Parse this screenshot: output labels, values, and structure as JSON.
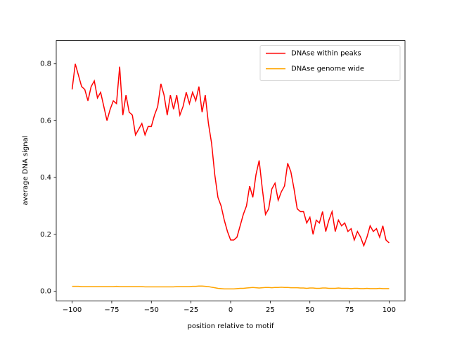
{
  "chart_data": {
    "type": "line",
    "xlabel": "position relative to motif",
    "ylabel": "average DNA signal",
    "x": [
      -100,
      -98,
      -96,
      -94,
      -92,
      -90,
      -88,
      -86,
      -84,
      -82,
      -80,
      -78,
      -76,
      -74,
      -72,
      -70,
      -68,
      -66,
      -64,
      -62,
      -60,
      -58,
      -56,
      -54,
      -52,
      -50,
      -48,
      -46,
      -44,
      -42,
      -40,
      -38,
      -36,
      -34,
      -32,
      -30,
      -28,
      -26,
      -24,
      -22,
      -20,
      -18,
      -16,
      -14,
      -12,
      -10,
      -8,
      -6,
      -4,
      -2,
      0,
      2,
      4,
      6,
      8,
      10,
      12,
      14,
      16,
      18,
      20,
      22,
      24,
      26,
      28,
      30,
      32,
      34,
      36,
      38,
      40,
      42,
      44,
      46,
      48,
      50,
      52,
      54,
      56,
      58,
      60,
      62,
      64,
      66,
      68,
      70,
      72,
      74,
      76,
      78,
      80,
      82,
      84,
      86,
      88,
      90,
      92,
      94,
      96,
      98,
      100
    ],
    "series": [
      {
        "name": "DNAse within peaks",
        "color": "#ff0000",
        "values": [
          0.71,
          0.8,
          0.76,
          0.72,
          0.71,
          0.67,
          0.72,
          0.74,
          0.68,
          0.7,
          0.65,
          0.6,
          0.64,
          0.67,
          0.66,
          0.79,
          0.62,
          0.69,
          0.63,
          0.62,
          0.55,
          0.57,
          0.59,
          0.55,
          0.58,
          0.58,
          0.62,
          0.65,
          0.73,
          0.69,
          0.62,
          0.69,
          0.64,
          0.69,
          0.62,
          0.65,
          0.7,
          0.66,
          0.7,
          0.67,
          0.72,
          0.63,
          0.69,
          0.59,
          0.52,
          0.41,
          0.33,
          0.3,
          0.25,
          0.21,
          0.18,
          0.18,
          0.19,
          0.23,
          0.27,
          0.3,
          0.37,
          0.33,
          0.41,
          0.46,
          0.36,
          0.27,
          0.29,
          0.36,
          0.38,
          0.32,
          0.35,
          0.37,
          0.45,
          0.42,
          0.36,
          0.29,
          0.28,
          0.28,
          0.24,
          0.26,
          0.2,
          0.25,
          0.24,
          0.28,
          0.21,
          0.25,
          0.28,
          0.21,
          0.25,
          0.23,
          0.24,
          0.21,
          0.22,
          0.18,
          0.21,
          0.19,
          0.16,
          0.19,
          0.23,
          0.21,
          0.22,
          0.19,
          0.23,
          0.18,
          0.17
        ]
      },
      {
        "name": "DNAse genome wide",
        "color": "#ffa500",
        "values": [
          0.017,
          0.017,
          0.017,
          0.016,
          0.016,
          0.016,
          0.016,
          0.016,
          0.016,
          0.016,
          0.016,
          0.016,
          0.016,
          0.016,
          0.017,
          0.016,
          0.016,
          0.016,
          0.016,
          0.016,
          0.016,
          0.016,
          0.016,
          0.015,
          0.015,
          0.015,
          0.015,
          0.015,
          0.015,
          0.015,
          0.015,
          0.015,
          0.015,
          0.016,
          0.016,
          0.016,
          0.016,
          0.016,
          0.017,
          0.017,
          0.018,
          0.018,
          0.017,
          0.016,
          0.014,
          0.012,
          0.01,
          0.009,
          0.008,
          0.008,
          0.008,
          0.008,
          0.009,
          0.01,
          0.01,
          0.011,
          0.012,
          0.013,
          0.012,
          0.011,
          0.012,
          0.013,
          0.013,
          0.012,
          0.013,
          0.013,
          0.014,
          0.013,
          0.013,
          0.012,
          0.012,
          0.012,
          0.011,
          0.011,
          0.01,
          0.011,
          0.011,
          0.01,
          0.01,
          0.011,
          0.011,
          0.01,
          0.01,
          0.01,
          0.011,
          0.01,
          0.01,
          0.01,
          0.009,
          0.01,
          0.01,
          0.009,
          0.009,
          0.01,
          0.009,
          0.009,
          0.009,
          0.01,
          0.009,
          0.009,
          0.009
        ]
      }
    ],
    "xlim": [
      -110,
      110
    ],
    "ylim": [
      -0.034,
      0.882
    ],
    "xticks": [
      {
        "value": -100,
        "label": "−100"
      },
      {
        "value": -75,
        "label": "−75"
      },
      {
        "value": -50,
        "label": "−50"
      },
      {
        "value": -25,
        "label": "−25"
      },
      0,
      25,
      50,
      75,
      100
    ],
    "yticks": [
      {
        "value": 0,
        "label": "0.0"
      },
      0.2,
      0.4,
      0.6,
      0.8
    ],
    "legend": "upper right"
  }
}
